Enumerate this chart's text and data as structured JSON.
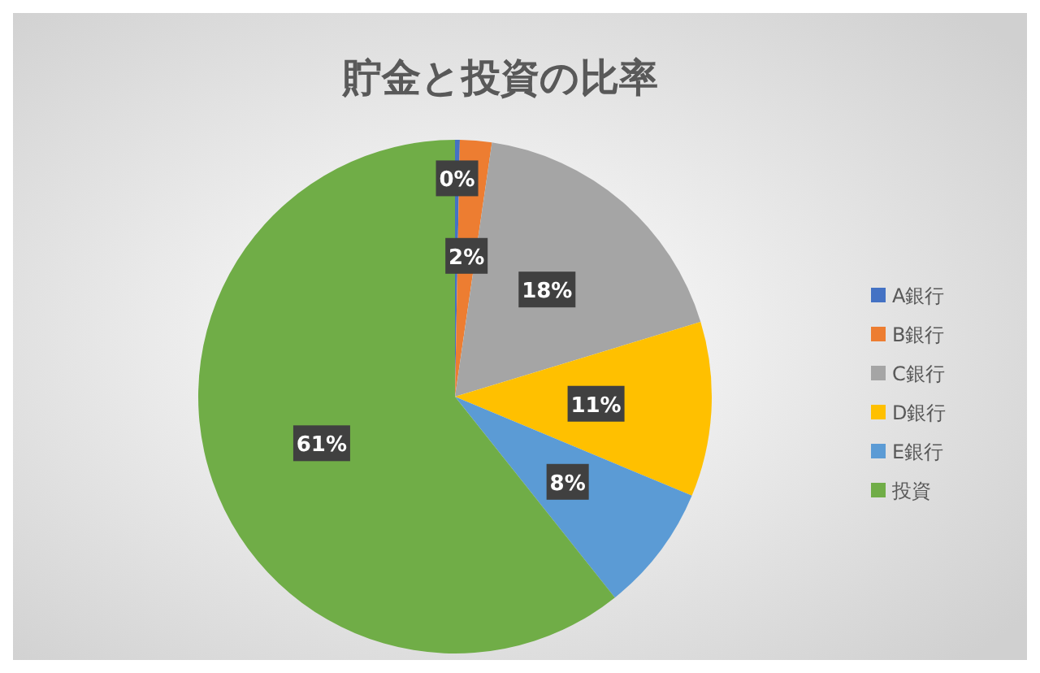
{
  "chart_data": {
    "type": "pie",
    "title": "貯金と投資の比率",
    "categories": [
      "A銀行",
      "B銀行",
      "C銀行",
      "D銀行",
      "E銀行",
      "投資"
    ],
    "values": [
      0.3,
      2,
      18,
      11,
      8,
      60.7
    ],
    "value_labels": [
      "0%",
      "2%",
      "18%",
      "11%",
      "8%",
      "61%"
    ],
    "colors": [
      "#4472c4",
      "#ed7d31",
      "#a5a5a5",
      "#ffc000",
      "#5b9bd5",
      "#70ad47"
    ],
    "legend": "right"
  }
}
